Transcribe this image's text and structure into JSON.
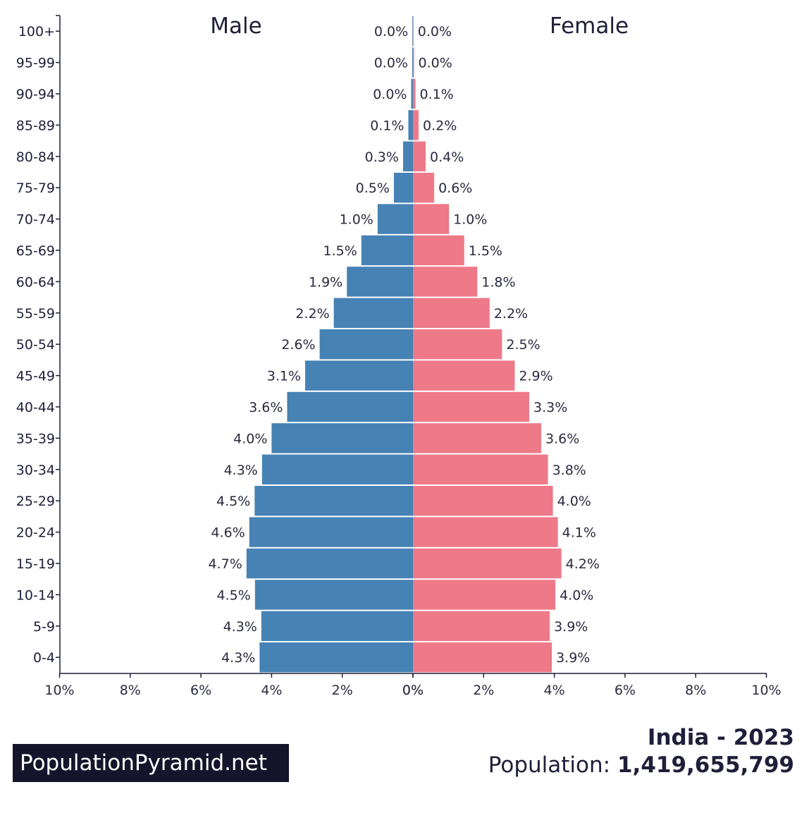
{
  "chart_data": {
    "type": "bar",
    "orientation": "horizontal-pyramid",
    "left_label": "Male",
    "right_label": "Female",
    "categories": [
      "100+",
      "95-99",
      "90-94",
      "85-89",
      "80-84",
      "75-79",
      "70-74",
      "65-69",
      "60-64",
      "55-59",
      "50-54",
      "45-49",
      "40-44",
      "35-39",
      "30-34",
      "25-29",
      "20-24",
      "15-19",
      "10-14",
      "5-9",
      "0-4"
    ],
    "series": [
      {
        "name": "Male",
        "color": "#4682b4",
        "values": [
          0.01,
          0.02,
          0.05,
          0.13,
          0.28,
          0.54,
          1.0,
          1.46,
          1.87,
          2.24,
          2.64,
          3.05,
          3.56,
          4.0,
          4.27,
          4.48,
          4.63,
          4.71,
          4.47,
          4.29,
          4.34
        ],
        "labels": [
          "0.0%",
          "0.0%",
          "0.0%",
          "0.1%",
          "0.3%",
          "0.5%",
          "1.0%",
          "1.5%",
          "1.9%",
          "2.2%",
          "2.6%",
          "3.1%",
          "3.6%",
          "4.0%",
          "4.3%",
          "4.5%",
          "4.6%",
          "4.7%",
          "4.5%",
          "4.3%",
          "4.3%"
        ]
      },
      {
        "name": "Female",
        "color": "#ee7989",
        "values": [
          0.01,
          0.03,
          0.07,
          0.16,
          0.36,
          0.6,
          1.02,
          1.45,
          1.82,
          2.17,
          2.52,
          2.88,
          3.29,
          3.63,
          3.82,
          3.96,
          4.1,
          4.2,
          4.03,
          3.87,
          3.93
        ],
        "labels": [
          "0.0%",
          "0.0%",
          "0.1%",
          "0.2%",
          "0.4%",
          "0.6%",
          "1.0%",
          "1.5%",
          "1.8%",
          "2.2%",
          "2.5%",
          "2.9%",
          "3.3%",
          "3.6%",
          "3.8%",
          "4.0%",
          "4.1%",
          "4.2%",
          "4.0%",
          "3.9%",
          "3.9%"
        ]
      }
    ],
    "xlim": [
      -10,
      10
    ],
    "x_ticks": [
      "10%",
      "8%",
      "6%",
      "4%",
      "2%",
      "0%",
      "0%",
      "2%",
      "4%",
      "6%",
      "8%",
      "10%"
    ],
    "grid": false
  },
  "brand": "PopulationPyramid.net",
  "country_year": "India - 2023",
  "population_label": "Population:",
  "population_value": "1,419,655,799"
}
